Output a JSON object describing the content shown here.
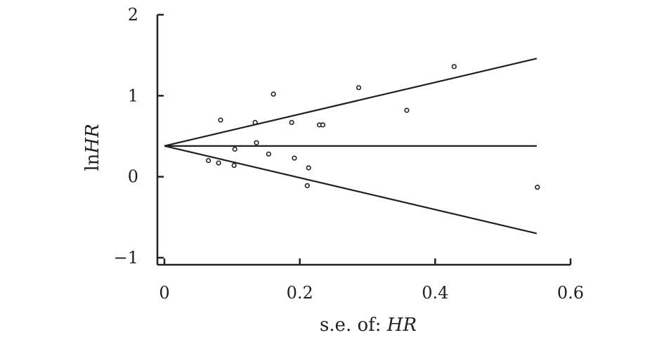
{
  "chart_data": {
    "type": "scatter",
    "xlabel_prefix": "s.e. of: ",
    "ylabel_prefix": "ln",
    "label_italic": "HR",
    "xlim": [
      0,
      0.6
    ],
    "ylim": [
      -1,
      2
    ],
    "x_ticks": [
      0,
      0.2,
      0.4,
      0.6
    ],
    "x_tick_labels": [
      "0",
      "0.2",
      "0.4",
      "0.6"
    ],
    "y_ticks": [
      -1,
      0,
      1,
      2
    ],
    "y_tick_labels": [
      "−1",
      "0",
      "1",
      "2"
    ],
    "pooled_effect": 0.38,
    "funnel_upper_end": {
      "x": 0.55,
      "y": 1.46
    },
    "funnel_lower_end": {
      "x": 0.55,
      "y": -0.7
    },
    "points": [
      {
        "x": 0.065,
        "y": 0.2
      },
      {
        "x": 0.08,
        "y": 0.17
      },
      {
        "x": 0.083,
        "y": 0.7
      },
      {
        "x": 0.103,
        "y": 0.14
      },
      {
        "x": 0.104,
        "y": 0.34
      },
      {
        "x": 0.134,
        "y": 0.67
      },
      {
        "x": 0.136,
        "y": 0.42
      },
      {
        "x": 0.154,
        "y": 0.28
      },
      {
        "x": 0.161,
        "y": 1.02
      },
      {
        "x": 0.188,
        "y": 0.67
      },
      {
        "x": 0.192,
        "y": 0.23
      },
      {
        "x": 0.211,
        "y": -0.11
      },
      {
        "x": 0.213,
        "y": 0.11
      },
      {
        "x": 0.229,
        "y": 0.64
      },
      {
        "x": 0.234,
        "y": 0.64
      },
      {
        "x": 0.287,
        "y": 1.1
      },
      {
        "x": 0.358,
        "y": 0.82
      },
      {
        "x": 0.428,
        "y": 1.36
      },
      {
        "x": 0.551,
        "y": -0.13
      }
    ]
  }
}
